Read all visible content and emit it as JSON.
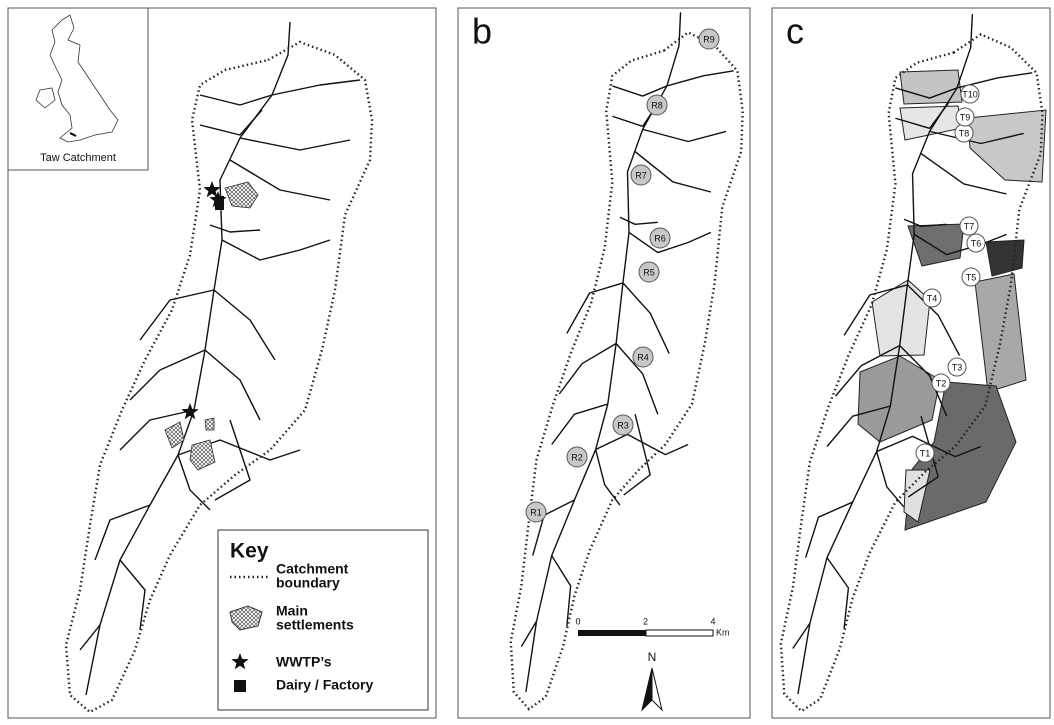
{
  "panels": [
    {
      "label": "a"
    },
    {
      "label": "b"
    },
    {
      "label": "c"
    }
  ],
  "inset": {
    "caption": "Taw Catchment"
  },
  "key": {
    "title": "Key",
    "items": [
      {
        "lines": [
          "Catchment",
          "boundary"
        ]
      },
      {
        "lines": [
          "Main",
          "settlements"
        ]
      },
      {
        "lines": [
          "WWTP’s"
        ]
      },
      {
        "lines": [
          "Dairy / Factory"
        ]
      }
    ]
  },
  "river_sites": [
    "R1",
    "R2",
    "R3",
    "R4",
    "R5",
    "R6",
    "R7",
    "R8",
    "R9"
  ],
  "tributary_sites": [
    "T1",
    "T2",
    "T3",
    "T4",
    "T5",
    "T6",
    "T7",
    "T8",
    "T9",
    "T10"
  ],
  "scale_bar": {
    "ticks": [
      0,
      2,
      4
    ],
    "unit": "Km"
  },
  "north": "N"
}
